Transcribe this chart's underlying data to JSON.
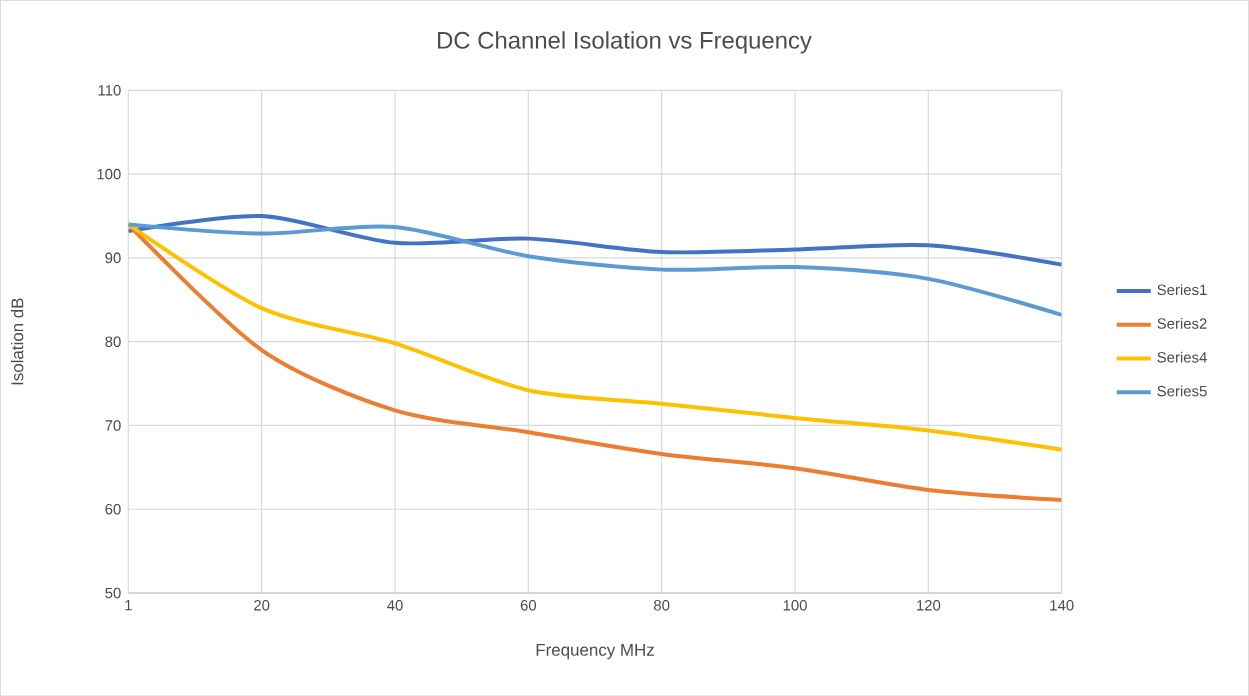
{
  "chart_data": {
    "type": "line",
    "title": "DC Channel Isolation vs Frequency",
    "xlabel": "Frequency MHz",
    "ylabel": "Isolation dB",
    "categories": [
      "1",
      "20",
      "40",
      "60",
      "80",
      "100",
      "120",
      "140"
    ],
    "series": [
      {
        "name": "Series1",
        "color": "#4472c4",
        "values": [
          93.2,
          95,
          91.8,
          92.3,
          90.7,
          91,
          91.5,
          89.2
        ]
      },
      {
        "name": "Series2",
        "color": "#ed7d31",
        "values": [
          94,
          79,
          71.8,
          69.2,
          66.6,
          64.9,
          62.3,
          61.1
        ]
      },
      {
        "name": "Series4",
        "color": "#ffc000",
        "values": [
          94,
          84,
          79.8,
          74.2,
          72.6,
          70.9,
          69.4,
          67.1
        ]
      },
      {
        "name": "Series5",
        "color": "#5b9bd5",
        "values": [
          94,
          92.9,
          93.7,
          90.2,
          88.6,
          88.9,
          87.5,
          83.2
        ]
      }
    ],
    "ylim": [
      50,
      110
    ],
    "yticks": [
      50,
      60,
      70,
      80,
      90,
      100,
      110
    ],
    "grid": true,
    "legend": "right",
    "marker": "none"
  }
}
